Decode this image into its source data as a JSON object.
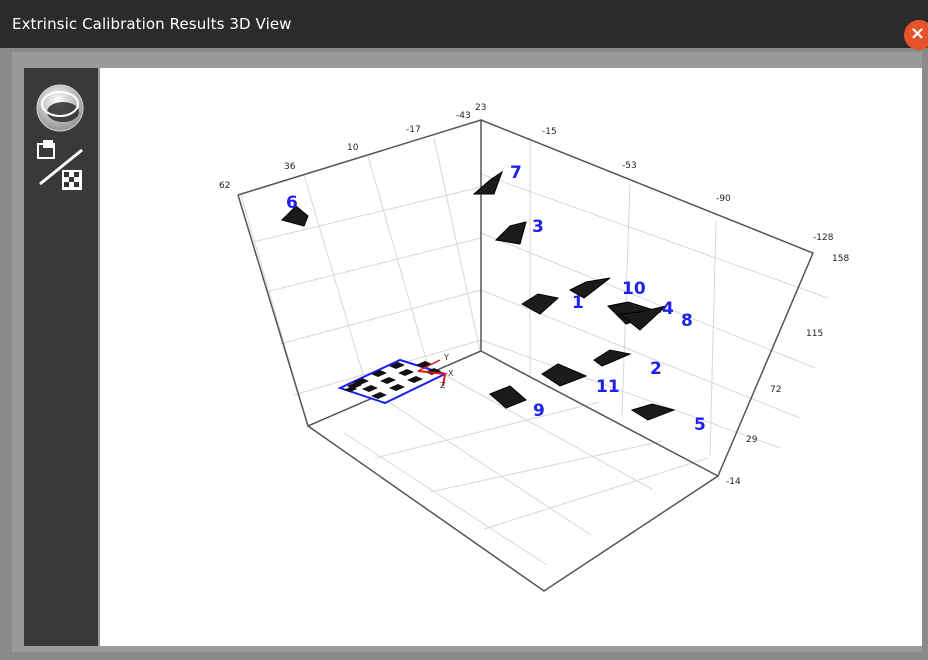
{
  "window": {
    "title": "Extrinsic Calibration Results 3D View"
  },
  "toolbar": {
    "tools": [
      {
        "name": "rotate-3d-icon"
      },
      {
        "name": "toggle-camera-board-centric-icon"
      }
    ]
  },
  "axes": {
    "left_ticks": [
      "62",
      "36",
      "10",
      "-17",
      "-43"
    ],
    "back_top": "23",
    "right_top_ticks": [
      "-15",
      "-53",
      "-90",
      "-128"
    ],
    "right_side_ticks": [
      "158",
      "115",
      "72",
      "29",
      "-14"
    ],
    "origin_labels": {
      "y": "Y",
      "x": "X",
      "z": "Z"
    }
  },
  "cameras": [
    {
      "id": "7",
      "label": "7"
    },
    {
      "id": "3",
      "label": "3"
    },
    {
      "id": "6",
      "label": "6"
    },
    {
      "id": "10",
      "label": "10"
    },
    {
      "id": "1",
      "label": "1"
    },
    {
      "id": "4",
      "label": "4"
    },
    {
      "id": "8",
      "label": "8"
    },
    {
      "id": "2",
      "label": "2"
    },
    {
      "id": "11",
      "label": "11"
    },
    {
      "id": "9",
      "label": "9"
    },
    {
      "id": "5",
      "label": "5"
    }
  ],
  "colors": {
    "titlebar": "#2b2b2b",
    "toolbar": "#393939",
    "close": "#e5532a",
    "label": "#1f1ff0",
    "board_edge": "#1f1ff0",
    "axis_red": "#e01818"
  }
}
